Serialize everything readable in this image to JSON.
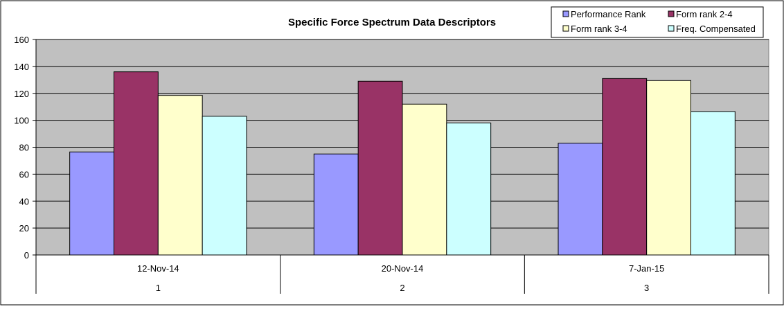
{
  "chart_data": {
    "type": "bar",
    "title": "Specific Force Spectrum Data Descriptors",
    "xlabel": "",
    "ylabel": "",
    "ylim": [
      0,
      160
    ],
    "yticks": [
      0,
      20,
      40,
      60,
      80,
      100,
      120,
      140,
      160
    ],
    "grid": true,
    "legend_position": "top-right",
    "categories": [
      "12-Nov-14",
      "20-Nov-14",
      "7-Jan-15"
    ],
    "category_index": [
      "1",
      "2",
      "3"
    ],
    "series": [
      {
        "name": "Performance Rank",
        "color": "#9999ff",
        "values": [
          76.5,
          75,
          83
        ]
      },
      {
        "name": "Form rank 2-4",
        "color": "#993366",
        "values": [
          136,
          129,
          131
        ]
      },
      {
        "name": "Form rank 3-4",
        "color": "#ffffcc",
        "values": [
          118.5,
          112,
          129.5
        ]
      },
      {
        "name": "Freq. Compensated",
        "color": "#ccffff",
        "values": [
          103,
          98,
          106.5
        ]
      }
    ],
    "colors": {
      "plot_background": "#c0c0c0",
      "gridline": "#000000",
      "bar_edge": "#000000"
    }
  }
}
